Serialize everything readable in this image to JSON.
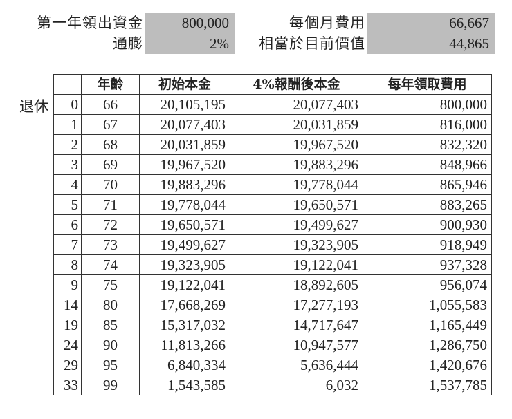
{
  "summary": {
    "first_year_withdrawal": {
      "label": "第一年領出資金",
      "value": "800,000"
    },
    "inflation": {
      "label": "通膨",
      "value": "2%"
    },
    "monthly_expense": {
      "label": "每個月費用",
      "value": "66,667"
    },
    "present_value": {
      "label": "相當於目前價值",
      "value": "44,865"
    }
  },
  "side_label": "退休",
  "table": {
    "headers": [
      "",
      "年齡",
      "初始本金",
      "4%報酬後本金",
      "每年領取費用"
    ],
    "rows": [
      {
        "idx": "0",
        "age": "66",
        "initial": "20,105,195",
        "after_return": "20,077,403",
        "annual_fee": "800,000"
      },
      {
        "idx": "1",
        "age": "67",
        "initial": "20,077,403",
        "after_return": "20,031,859",
        "annual_fee": "816,000"
      },
      {
        "idx": "2",
        "age": "68",
        "initial": "20,031,859",
        "after_return": "19,967,520",
        "annual_fee": "832,320"
      },
      {
        "idx": "3",
        "age": "69",
        "initial": "19,967,520",
        "after_return": "19,883,296",
        "annual_fee": "848,966"
      },
      {
        "idx": "4",
        "age": "70",
        "initial": "19,883,296",
        "after_return": "19,778,044",
        "annual_fee": "865,946"
      },
      {
        "idx": "5",
        "age": "71",
        "initial": "19,778,044",
        "after_return": "19,650,571",
        "annual_fee": "883,265"
      },
      {
        "idx": "6",
        "age": "72",
        "initial": "19,650,571",
        "after_return": "19,499,627",
        "annual_fee": "900,930"
      },
      {
        "idx": "7",
        "age": "73",
        "initial": "19,499,627",
        "after_return": "19,323,905",
        "annual_fee": "918,949"
      },
      {
        "idx": "8",
        "age": "74",
        "initial": "19,323,905",
        "after_return": "19,122,041",
        "annual_fee": "937,328"
      },
      {
        "idx": "9",
        "age": "75",
        "initial": "19,122,041",
        "after_return": "18,892,605",
        "annual_fee": "956,074"
      },
      {
        "idx": "14",
        "age": "80",
        "initial": "17,668,269",
        "after_return": "17,277,193",
        "annual_fee": "1,055,583"
      },
      {
        "idx": "19",
        "age": "85",
        "initial": "15,317,032",
        "after_return": "14,717,647",
        "annual_fee": "1,165,449"
      },
      {
        "idx": "24",
        "age": "90",
        "initial": "11,813,266",
        "after_return": "10,947,577",
        "annual_fee": "1,286,750"
      },
      {
        "idx": "29",
        "age": "95",
        "initial": "6,840,334",
        "after_return": "5,636,444",
        "annual_fee": "1,420,676"
      },
      {
        "idx": "33",
        "age": "99",
        "initial": "1,543,585",
        "after_return": "6,032",
        "annual_fee": "1,537,785"
      }
    ]
  },
  "colors": {
    "input_box": "#bdbdbd",
    "grid": "#333333",
    "text": "#222222"
  }
}
